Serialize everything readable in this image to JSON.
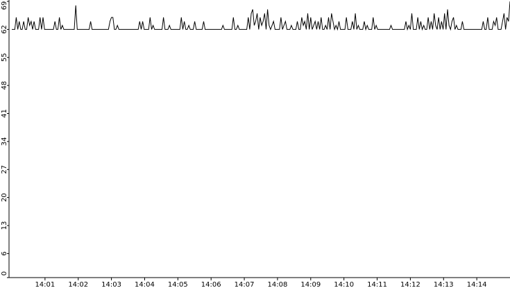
{
  "chart_data": {
    "type": "line",
    "color": "#000000",
    "ylim": [
      0,
      69
    ],
    "yticks": [
      0,
      6,
      13,
      20,
      27,
      34,
      41,
      48,
      55,
      62,
      69
    ],
    "xlim": [
      0,
      15
    ],
    "xticks": [
      {
        "value": 1,
        "label": "14:01"
      },
      {
        "value": 2,
        "label": "14:02"
      },
      {
        "value": 3,
        "label": "14:03"
      },
      {
        "value": 4,
        "label": "14:04"
      },
      {
        "value": 5,
        "label": "14:05"
      },
      {
        "value": 6,
        "label": "14:06"
      },
      {
        "value": 7,
        "label": "14:07"
      },
      {
        "value": 8,
        "label": "14:08"
      },
      {
        "value": 9,
        "label": "14:09"
      },
      {
        "value": 10,
        "label": "14:10"
      },
      {
        "value": 11,
        "label": "14:11"
      },
      {
        "value": 12,
        "label": "14:12"
      },
      {
        "value": 13,
        "label": "14:13"
      },
      {
        "value": 14,
        "label": "14:14"
      }
    ],
    "values": [
      62,
      62,
      62,
      65,
      62,
      64,
      62,
      62,
      64,
      62,
      62,
      65,
      63,
      64,
      62,
      64,
      62,
      62,
      62,
      65,
      62,
      65,
      62,
      62,
      62,
      62,
      62,
      62,
      62,
      64,
      62,
      62,
      65,
      62,
      63,
      62,
      62,
      62,
      62,
      62,
      62,
      62,
      62,
      68,
      62,
      62,
      62,
      62,
      62,
      62,
      62,
      62,
      62,
      64,
      62,
      62,
      62,
      62,
      62,
      62,
      62,
      62,
      62,
      62,
      62,
      62,
      64,
      65,
      65,
      62,
      62,
      63,
      62,
      62,
      62,
      62,
      62,
      62,
      62,
      62,
      62,
      62,
      62,
      62,
      62,
      62,
      64,
      62,
      64,
      62,
      62,
      62,
      62,
      65,
      62,
      63,
      62,
      62,
      62,
      62,
      62,
      62,
      65,
      62,
      62,
      62,
      63,
      62,
      62,
      62,
      62,
      62,
      62,
      62,
      65,
      62,
      64,
      62,
      62,
      63,
      62,
      62,
      62,
      64,
      62,
      62,
      62,
      62,
      62,
      64,
      62,
      62,
      62,
      62,
      62,
      62,
      62,
      62,
      62,
      62,
      62,
      62,
      63,
      62,
      62,
      62,
      62,
      62,
      62,
      65,
      62,
      62,
      63,
      62,
      62,
      62,
      62,
      62,
      62,
      65,
      62,
      66,
      67,
      63,
      64,
      66,
      62,
      65,
      63,
      64,
      66,
      62,
      67,
      63,
      62,
      63,
      64,
      62,
      62,
      62,
      62,
      65,
      62,
      63,
      64,
      62,
      62,
      62,
      63,
      62,
      62,
      62,
      64,
      62,
      62,
      65,
      63,
      64,
      62,
      66,
      62,
      65,
      62,
      63,
      64,
      62,
      64,
      62,
      65,
      62,
      62,
      63,
      62,
      65,
      62,
      66,
      64,
      62,
      63,
      62,
      64,
      62,
      62,
      62,
      62,
      65,
      62,
      62,
      62,
      64,
      62,
      66,
      62,
      63,
      62,
      62,
      62,
      64,
      62,
      63,
      62,
      62,
      62,
      65,
      62,
      63,
      62,
      62,
      62,
      62,
      62,
      62,
      62,
      62,
      62,
      63,
      62,
      62,
      62,
      62,
      62,
      62,
      62,
      62,
      62,
      64,
      62,
      63,
      62,
      66,
      62,
      62,
      62,
      65,
      62,
      64,
      62,
      63,
      62,
      62,
      65,
      62,
      64,
      62,
      66,
      63,
      62,
      65,
      62,
      64,
      62,
      66,
      62,
      67,
      63,
      62,
      64,
      65,
      62,
      63,
      62,
      62,
      62,
      64,
      62,
      62,
      62,
      62,
      62,
      62,
      62,
      62,
      62,
      62,
      62,
      62,
      62,
      64,
      62,
      62,
      65,
      62,
      62,
      62,
      64,
      63,
      65,
      62,
      62,
      62,
      64,
      66,
      62,
      65,
      64,
      69
    ]
  }
}
